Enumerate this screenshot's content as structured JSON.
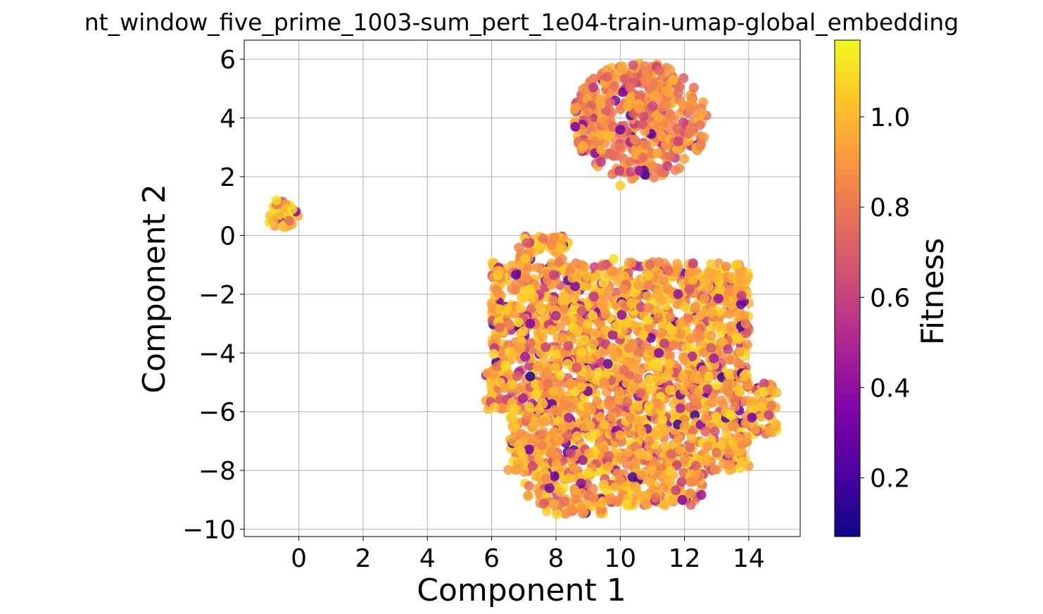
{
  "chart_data": {
    "type": "scatter",
    "title": "nt_window_five_prime_1003-sum_pert_1e04-train-umap-global_embedding",
    "xlabel": "Component 1",
    "ylabel": "Component 2",
    "xlim": [
      -1.7,
      15.6
    ],
    "ylim": [
      -10.25,
      6.65
    ],
    "xticks": [
      0,
      2,
      4,
      6,
      8,
      10,
      12,
      14
    ],
    "yticks": [
      -10,
      -8,
      -6,
      -4,
      -2,
      0,
      2,
      4,
      6
    ],
    "xtick_labels": [
      "0",
      "2",
      "4",
      "6",
      "8",
      "10",
      "12",
      "14"
    ],
    "ytick_labels": [
      "−10",
      "−8",
      "−6",
      "−4",
      "−2",
      "0",
      "2",
      "4",
      "6"
    ],
    "grid": true,
    "colormap": "plasma",
    "colorbar": {
      "label": "Fitness",
      "range": [
        0.07,
        1.17
      ],
      "ticks": [
        0.2,
        0.4,
        0.6,
        0.8,
        1.0
      ],
      "tick_labels": [
        "0.2",
        "0.4",
        "0.6",
        "0.8",
        "1.0"
      ]
    },
    "clusters": [
      {
        "description": "small isolated cluster",
        "x_range": [
          -1.0,
          0.0
        ],
        "y_range": [
          0.2,
          1.2
        ],
        "typical_fitness": 1.0
      },
      {
        "description": "upper cluster",
        "x_range": [
          8.5,
          12.7
        ],
        "y_range": [
          1.7,
          5.9
        ],
        "typical_fitness": 0.85
      },
      {
        "description": "large lower cluster",
        "x_range": [
          5.8,
          14.9
        ],
        "y_range": [
          -9.5,
          0.0
        ],
        "typical_fitness": 0.95
      }
    ],
    "points": [
      {
        "x": -0.6,
        "y": 0.7,
        "fitness": 1.05
      },
      {
        "x": -0.4,
        "y": 0.9,
        "fitness": 1.02
      },
      {
        "x": -0.8,
        "y": 0.5,
        "fitness": 0.98
      },
      {
        "x": -0.2,
        "y": 0.9,
        "fitness": 1.08
      },
      {
        "x": -0.3,
        "y": 0.5,
        "fitness": 0.75
      },
      {
        "x": -0.7,
        "y": 1.2,
        "fitness": 1.1
      },
      {
        "x": -0.5,
        "y": 0.3,
        "fitness": 1.03
      },
      {
        "x": 10.4,
        "y": 5.8,
        "fitness": 0.65
      },
      {
        "x": 9.6,
        "y": 5.4,
        "fitness": 0.7
      },
      {
        "x": 9.0,
        "y": 4.2,
        "fitness": 0.9
      },
      {
        "x": 10.0,
        "y": 3.6,
        "fitness": 0.3
      },
      {
        "x": 11.2,
        "y": 4.0,
        "fitness": 0.95
      },
      {
        "x": 12.2,
        "y": 4.3,
        "fitness": 0.85
      },
      {
        "x": 11.8,
        "y": 3.2,
        "fitness": 0.6
      },
      {
        "x": 9.4,
        "y": 2.5,
        "fitness": 0.55
      },
      {
        "x": 10.0,
        "y": 1.7,
        "fitness": 1.05
      },
      {
        "x": 10.6,
        "y": 2.2,
        "fitness": 0.4
      },
      {
        "x": 8.6,
        "y": 3.7,
        "fitness": 0.35
      },
      {
        "x": 7.6,
        "y": -0.1,
        "fitness": 0.8
      },
      {
        "x": 6.2,
        "y": -1.2,
        "fitness": 1.0
      },
      {
        "x": 6.0,
        "y": -2.3,
        "fitness": 0.95
      },
      {
        "x": 7.2,
        "y": -3.0,
        "fitness": 0.35
      },
      {
        "x": 8.8,
        "y": -1.0,
        "fitness": 0.9
      },
      {
        "x": 9.8,
        "y": -0.8,
        "fitness": 1.1
      },
      {
        "x": 11.5,
        "y": -1.2,
        "fitness": 0.75
      },
      {
        "x": 13.5,
        "y": -1.4,
        "fitness": 1.0
      },
      {
        "x": 13.9,
        "y": -3.0,
        "fitness": 0.85
      },
      {
        "x": 12.5,
        "y": -2.7,
        "fitness": 0.95
      },
      {
        "x": 10.2,
        "y": -3.0,
        "fitness": 1.05
      },
      {
        "x": 8.2,
        "y": -3.5,
        "fitness": 0.9
      },
      {
        "x": 6.4,
        "y": -5.2,
        "fitness": 0.95
      },
      {
        "x": 7.2,
        "y": -4.8,
        "fitness": 0.1
      },
      {
        "x": 9.5,
        "y": -5.0,
        "fitness": 0.88
      },
      {
        "x": 11.2,
        "y": -4.0,
        "fitness": 0.35
      },
      {
        "x": 13.0,
        "y": -5.1,
        "fitness": 1.12
      },
      {
        "x": 14.7,
        "y": -5.8,
        "fitness": 0.8
      },
      {
        "x": 14.1,
        "y": -6.2,
        "fitness": 0.35
      },
      {
        "x": 12.0,
        "y": -6.5,
        "fitness": 0.92
      },
      {
        "x": 10.0,
        "y": -6.8,
        "fitness": 0.98
      },
      {
        "x": 8.4,
        "y": -6.2,
        "fitness": 0.45
      },
      {
        "x": 7.0,
        "y": -7.0,
        "fitness": 0.95
      },
      {
        "x": 7.8,
        "y": -8.6,
        "fitness": 0.3
      },
      {
        "x": 8.8,
        "y": -9.3,
        "fitness": 0.9
      },
      {
        "x": 10.5,
        "y": -8.6,
        "fitness": 1.0
      },
      {
        "x": 12.2,
        "y": -8.4,
        "fitness": 0.85
      },
      {
        "x": 13.4,
        "y": -7.8,
        "fitness": 0.9
      },
      {
        "x": 9.0,
        "y": -4.2,
        "fitness": 1.0
      },
      {
        "x": 11.8,
        "y": -2.0,
        "fitness": 0.4
      }
    ]
  }
}
